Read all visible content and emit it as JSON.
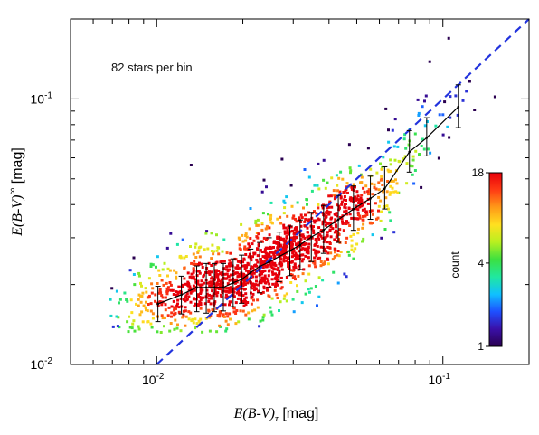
{
  "chart_data": {
    "type": "scatter",
    "annotation": "82 stars per bin",
    "xlabel": {
      "main": "E(B-V)",
      "sub": "τ",
      "unit": "[mag]"
    },
    "ylabel": {
      "main": "E(B-V)",
      "sup": "∞",
      "unit": "[mag]"
    },
    "x_scale": "log",
    "y_scale": "log",
    "xlim": [
      0.005,
      0.2
    ],
    "ylim": [
      0.01,
      0.2
    ],
    "x_tick_labels": [
      {
        "value": 0.01,
        "base": "10",
        "exp": "-2"
      },
      {
        "value": 0.1,
        "base": "10",
        "exp": "-1"
      }
    ],
    "y_tick_labels": [
      {
        "value": 0.01,
        "base": "10",
        "exp": "-2"
      },
      {
        "value": 0.1,
        "base": "10",
        "exp": "-1"
      }
    ],
    "grid": false,
    "reference_line": {
      "style": "dashed",
      "color": "#2233dd",
      "x": [
        0.01,
        0.2
      ],
      "y": [
        0.01,
        0.2
      ]
    },
    "binned_median": {
      "color": "#000000",
      "x": [
        0.0101,
        0.0122,
        0.0138,
        0.0149,
        0.0159,
        0.0171,
        0.0185,
        0.0198,
        0.0213,
        0.0229,
        0.0247,
        0.0268,
        0.0292,
        0.0317,
        0.0347,
        0.0383,
        0.0431,
        0.0487,
        0.0558,
        0.0626,
        0.0764,
        0.0878,
        0.1132
      ],
      "y": [
        0.0169,
        0.0183,
        0.0195,
        0.0195,
        0.0195,
        0.0195,
        0.0203,
        0.0209,
        0.0222,
        0.0234,
        0.0243,
        0.0255,
        0.0268,
        0.0282,
        0.0302,
        0.0321,
        0.0351,
        0.0385,
        0.0422,
        0.0459,
        0.0632,
        0.0714,
        0.0933
      ],
      "y_err_low": [
        0.0145,
        0.0155,
        0.0158,
        0.0156,
        0.0158,
        0.0159,
        0.0165,
        0.017,
        0.0178,
        0.0186,
        0.0195,
        0.0205,
        0.0216,
        0.0228,
        0.0244,
        0.0262,
        0.0288,
        0.032,
        0.0352,
        0.0385,
        0.053,
        0.061,
        0.078
      ],
      "y_err_high": [
        0.0197,
        0.0215,
        0.0235,
        0.024,
        0.024,
        0.024,
        0.025,
        0.0258,
        0.0272,
        0.0288,
        0.03,
        0.0315,
        0.0332,
        0.035,
        0.0374,
        0.0397,
        0.0433,
        0.047,
        0.0512,
        0.0555,
        0.076,
        0.085,
        0.113
      ]
    },
    "density_colorbar": {
      "label": "count",
      "scale": "log",
      "range": [
        1,
        18
      ],
      "tick_labels": [
        "1",
        "4",
        "18"
      ],
      "colormap": [
        "#2a0050",
        "#3a10a8",
        "#1e4fff",
        "#10c0ff",
        "#20e8a0",
        "#3ce040",
        "#b8f020",
        "#ffe020",
        "#ff9a18",
        "#ff3c14",
        "#e8000a"
      ]
    },
    "point_density": {
      "note": "points follow the binned median with a lognormal scatter, denser in the middle",
      "n_points": 1600,
      "x_range": [
        0.0068,
        0.19
      ]
    }
  }
}
